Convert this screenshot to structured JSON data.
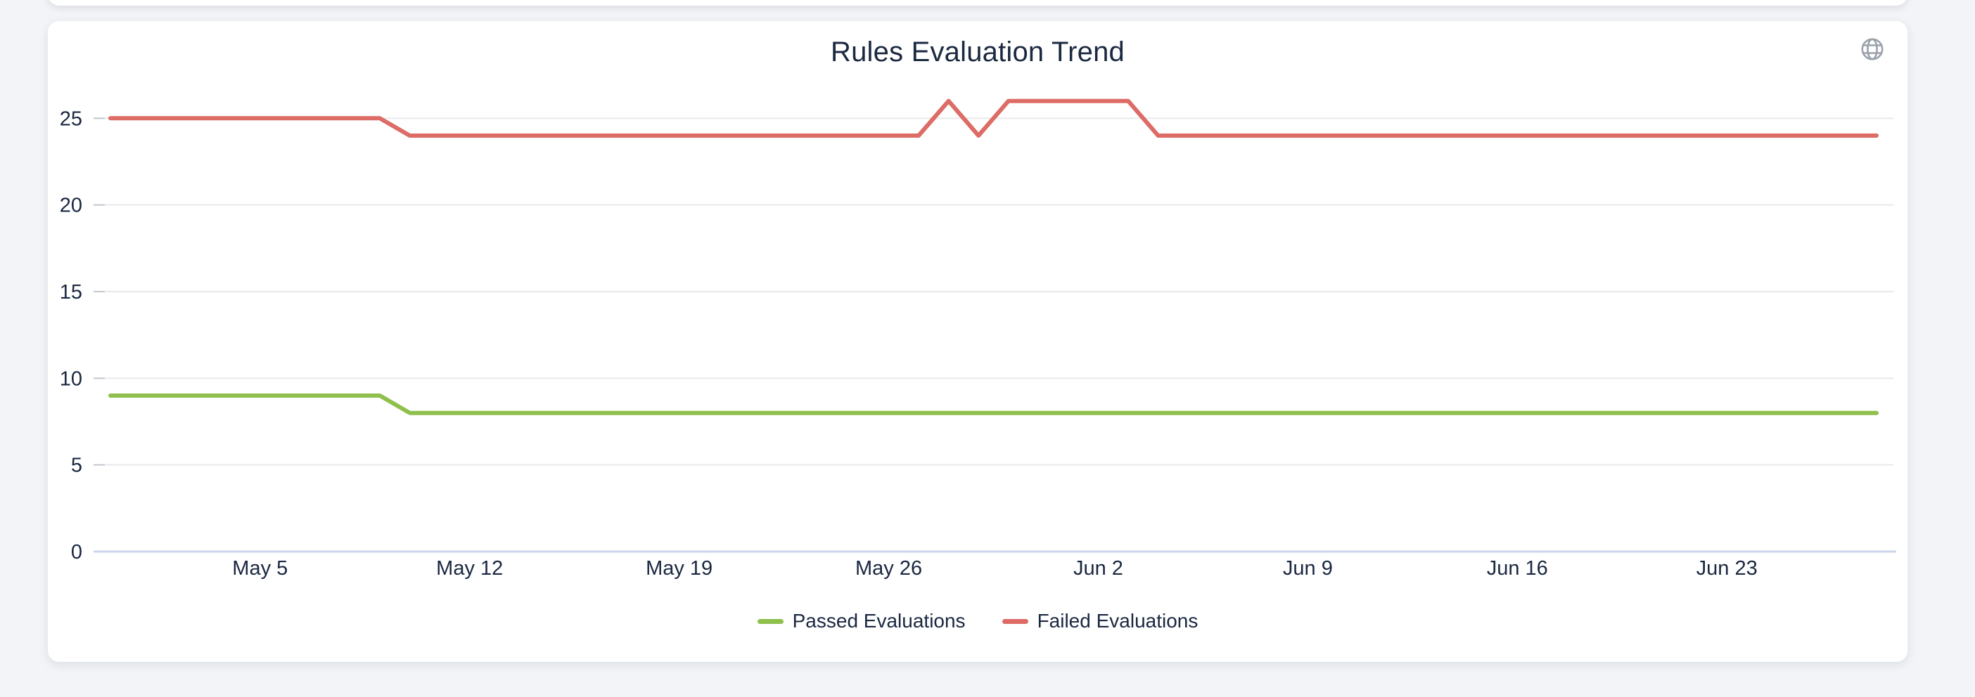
{
  "card": {
    "title": "Rules Evaluation Trend",
    "header_icon": "globe-icon"
  },
  "colors": {
    "passed_line": "#8fc04c",
    "failed_line": "#dd6b66",
    "grid_line": "#e7e9ec",
    "zero_axis_line": "#cbd5e9",
    "axis_tick": "#c3c7cd",
    "axis_label_text": "#1a2740",
    "title_text": "#1b2940",
    "icon_gray": "#9aa1ab",
    "card_background": "#ffffff",
    "page_background": "#f2f4f7"
  },
  "chart_data": {
    "type": "line",
    "title": "Rules Evaluation Trend",
    "grid": true,
    "legend_position": "bottom",
    "ylim": [
      0,
      27.5
    ],
    "y_ticks": [
      0,
      5,
      10,
      15,
      20,
      25
    ],
    "x_tick_labels": [
      "May 5",
      "May 12",
      "May 19",
      "May 26",
      "Jun 2",
      "Jun 9",
      "Jun 16",
      "Jun 23"
    ],
    "x_tick_indices": [
      5,
      12,
      19,
      26,
      33,
      40,
      47,
      54
    ],
    "x": [
      "Apr 30",
      "May 1",
      "May 2",
      "May 3",
      "May 4",
      "May 5",
      "May 6",
      "May 7",
      "May 8",
      "May 9",
      "May 10",
      "May 11",
      "May 12",
      "May 13",
      "May 14",
      "May 15",
      "May 16",
      "May 17",
      "May 18",
      "May 19",
      "May 20",
      "May 21",
      "May 22",
      "May 23",
      "May 24",
      "May 25",
      "May 26",
      "May 27",
      "May 28",
      "May 29",
      "May 30",
      "May 31",
      "Jun 1",
      "Jun 2",
      "Jun 3",
      "Jun 4",
      "Jun 5",
      "Jun 6",
      "Jun 7",
      "Jun 8",
      "Jun 9",
      "Jun 10",
      "Jun 11",
      "Jun 12",
      "Jun 13",
      "Jun 14",
      "Jun 15",
      "Jun 16",
      "Jun 17",
      "Jun 18",
      "Jun 19",
      "Jun 20",
      "Jun 21",
      "Jun 22",
      "Jun 23",
      "Jun 24",
      "Jun 25",
      "Jun 26",
      "Jun 27",
      "Jun 28"
    ],
    "series": [
      {
        "name": "Passed Evaluations",
        "color": "#8fc04c",
        "values": [
          9,
          9,
          9,
          9,
          9,
          9,
          9,
          9,
          9,
          9,
          8,
          8,
          8,
          8,
          8,
          8,
          8,
          8,
          8,
          8,
          8,
          8,
          8,
          8,
          8,
          8,
          8,
          8,
          8,
          8,
          8,
          8,
          8,
          8,
          8,
          8,
          8,
          8,
          8,
          8,
          8,
          8,
          8,
          8,
          8,
          8,
          8,
          8,
          8,
          8,
          8,
          8,
          8,
          8,
          8,
          8,
          8,
          8,
          8,
          8
        ]
      },
      {
        "name": "Failed Evaluations",
        "color": "#dd6b66",
        "values": [
          25,
          25,
          25,
          25,
          25,
          25,
          25,
          25,
          25,
          25,
          24,
          24,
          24,
          24,
          24,
          24,
          24,
          24,
          24,
          24,
          24,
          24,
          24,
          24,
          24,
          24,
          24,
          24,
          26,
          24,
          26,
          26,
          26,
          26,
          26,
          24,
          24,
          24,
          24,
          24,
          24,
          24,
          24,
          24,
          24,
          24,
          24,
          24,
          24,
          24,
          24,
          24,
          24,
          24,
          24,
          24,
          24,
          24,
          24,
          24
        ]
      }
    ]
  },
  "legend": {
    "items": [
      {
        "label": "Passed Evaluations",
        "color": "#8fc04c"
      },
      {
        "label": "Failed Evaluations",
        "color": "#dd6b66"
      }
    ]
  }
}
